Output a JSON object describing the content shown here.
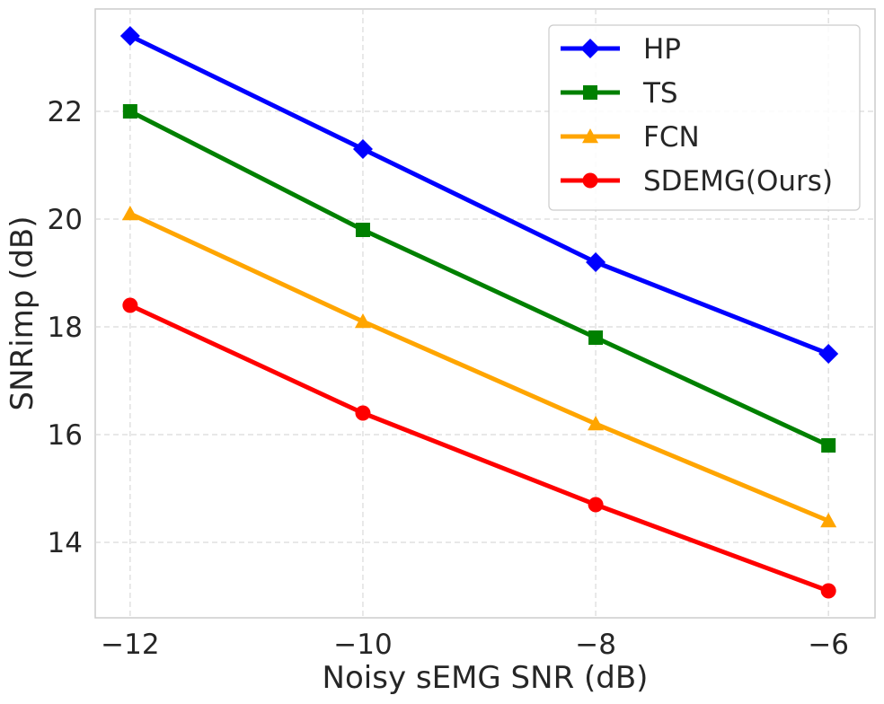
{
  "chart_data": {
    "type": "line",
    "xlabel": "Noisy sEMG SNR (dB)",
    "ylabel": "SNRimp (dB)",
    "x": [
      -12,
      -10,
      -8,
      -6
    ],
    "xticks": [
      -12,
      -10,
      -8,
      -6
    ],
    "xtick_labels": [
      "−12",
      "−10",
      "−8",
      "−6"
    ],
    "yticks": [
      14,
      16,
      18,
      20,
      22
    ],
    "ytick_labels": [
      "14",
      "16",
      "18",
      "20",
      "22"
    ],
    "xlim": [
      -12.3,
      -5.6
    ],
    "ylim": [
      12.6,
      23.9
    ],
    "grid": true,
    "legend_position": "top-right",
    "series": [
      {
        "name": "HP",
        "values": [
          23.4,
          21.3,
          19.2,
          17.5
        ],
        "color": "#0000ff",
        "marker": "diamond"
      },
      {
        "name": "TS",
        "values": [
          22.0,
          19.8,
          17.8,
          15.8
        ],
        "color": "#008000",
        "marker": "square"
      },
      {
        "name": "FCN",
        "values": [
          20.1,
          18.1,
          16.2,
          14.4
        ],
        "color": "#ffa500",
        "marker": "triangle"
      },
      {
        "name": "SDEMG(Ours)",
        "values": [
          18.4,
          16.4,
          14.7,
          13.1
        ],
        "color": "#ff0000",
        "marker": "circle"
      }
    ]
  }
}
